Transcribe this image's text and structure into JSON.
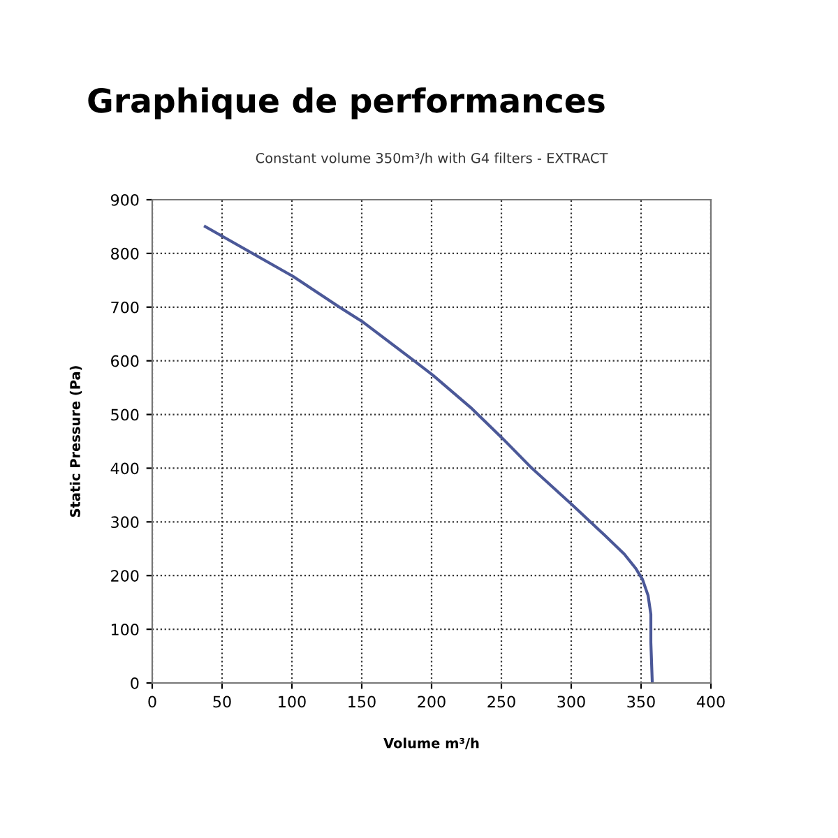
{
  "chart_data": {
    "type": "line",
    "title": "Graphique de performances",
    "subtitle": "Constant volume 350m³/h with G4 filters - EXTRACT",
    "xlabel": "Volume m³/h",
    "ylabel": "Static Pressure (Pa)",
    "series": [
      {
        "color": "#4b5898",
        "x": [
          38,
          101,
          134,
          151,
          188,
          201,
          228,
          251,
          271,
          301,
          324,
          338,
          346,
          351,
          355,
          357,
          357,
          358
        ],
        "values": [
          850,
          757,
          700,
          672,
          599,
          573,
          513,
          455,
          402,
          331,
          275,
          240,
          214,
          193,
          163,
          128,
          76,
          3
        ]
      }
    ],
    "xlim": [
      0,
      400
    ],
    "ylim": [
      0,
      900
    ],
    "xticks": [
      0,
      50,
      100,
      150,
      200,
      250,
      300,
      350,
      400
    ],
    "yticks": [
      0,
      100,
      200,
      300,
      400,
      500,
      600,
      700,
      800,
      900
    ],
    "grid": true,
    "line_style": "solid",
    "marker": "none"
  }
}
